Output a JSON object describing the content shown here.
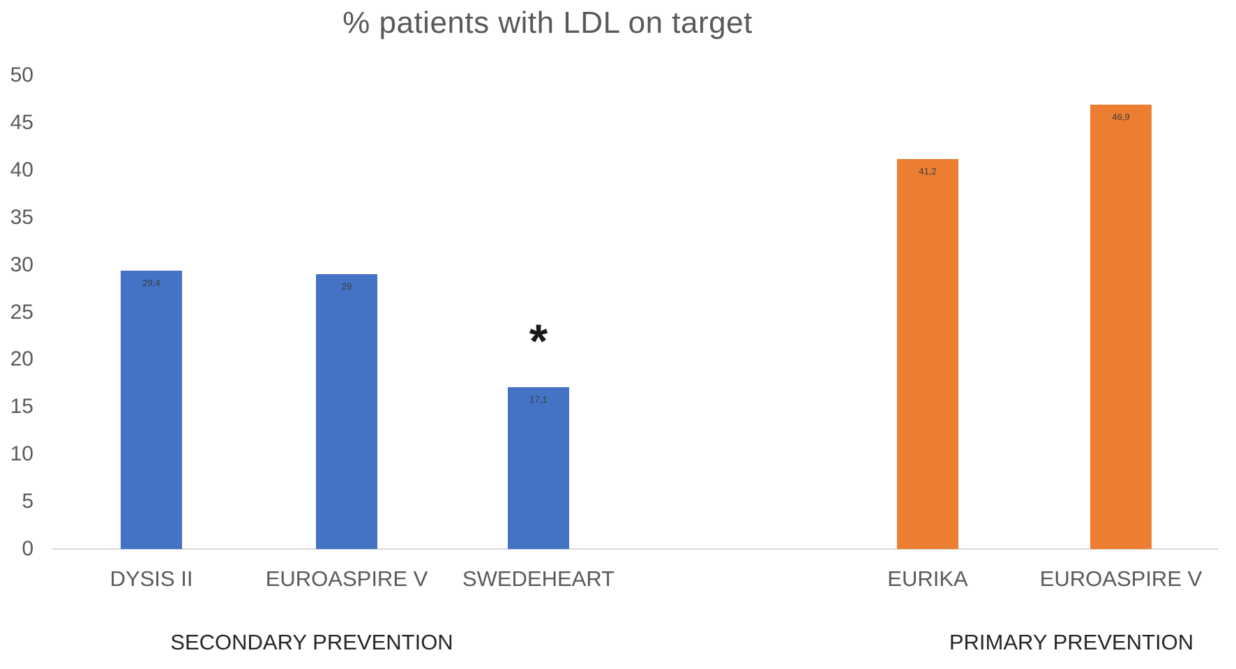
{
  "chart_data": {
    "type": "bar",
    "title": "% patients with LDL on target",
    "xlabel": "",
    "ylabel": "",
    "ylim": [
      0,
      50
    ],
    "yticks": [
      0,
      5,
      10,
      15,
      20,
      25,
      30,
      35,
      40,
      45,
      50
    ],
    "grid": "off",
    "legend": "none",
    "groups": [
      {
        "label": "SECONDARY PREVENTION",
        "color": "#4472C4",
        "bars": [
          {
            "category": "DYSIS II",
            "value": 29.4,
            "value_label": "29,4",
            "annotation": ""
          },
          {
            "category": "EUROASPIRE V",
            "value": 29.0,
            "value_label": "29",
            "annotation": ""
          },
          {
            "category": "SWEDEHEART",
            "value": 17.1,
            "value_label": "17,1",
            "annotation": "*"
          }
        ]
      },
      {
        "label": "PRIMARY PREVENTION",
        "color": "#ED7D31",
        "bars": [
          {
            "category": "EURIKA",
            "value": 41.2,
            "value_label": "41,2",
            "annotation": ""
          },
          {
            "category": "EUROASPIRE V",
            "value": 46.9,
            "value_label": "46,9",
            "annotation": ""
          }
        ]
      }
    ],
    "colors": {
      "secondary_prevention": "#4472C4",
      "primary_prevention": "#ED7D31",
      "title_text": "#595959",
      "axis_text": "#595959",
      "group_text": "#262626",
      "axis_line": "#D9D9D9"
    }
  }
}
